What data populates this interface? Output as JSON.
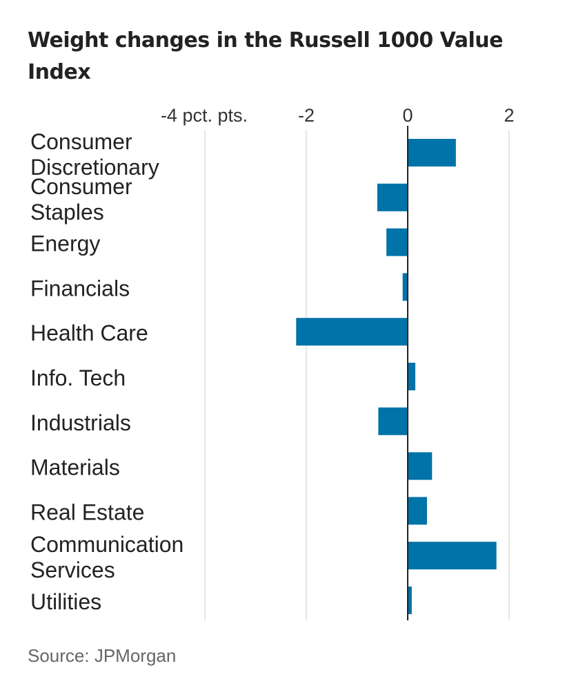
{
  "header": {
    "title": "Weight changes in the Russell 1000 Value Index"
  },
  "footer": {
    "source": "Source: JPMorgan"
  },
  "colors": {
    "bar": "#0073a8",
    "grid": "#dddddd",
    "zero_line": "#222222",
    "text": "#222222"
  },
  "chart_data": {
    "type": "bar",
    "orientation": "horizontal",
    "title": "Weight changes in the Russell 1000 Value Index",
    "xlim": [
      -4,
      2
    ],
    "xticks": [
      {
        "value": -4,
        "label": "-4 pct. pts."
      },
      {
        "value": -2,
        "label": "-2"
      },
      {
        "value": 0,
        "label": "0"
      },
      {
        "value": 2,
        "label": "2"
      }
    ],
    "grid": true,
    "categories": [
      [
        "Consumer",
        "Discretionary"
      ],
      [
        "Consumer",
        "Staples"
      ],
      [
        "Energy"
      ],
      [
        "Financials"
      ],
      [
        "Health Care"
      ],
      [
        "Info. Tech"
      ],
      [
        "Industrials"
      ],
      [
        "Materials"
      ],
      [
        "Real Estate"
      ],
      [
        "Communication",
        "Services"
      ],
      [
        "Utilities"
      ]
    ],
    "values": [
      0.95,
      -0.6,
      -0.42,
      -0.1,
      -2.2,
      0.15,
      -0.58,
      0.48,
      0.38,
      1.75,
      0.08
    ],
    "source": "Source: JPMorgan"
  }
}
